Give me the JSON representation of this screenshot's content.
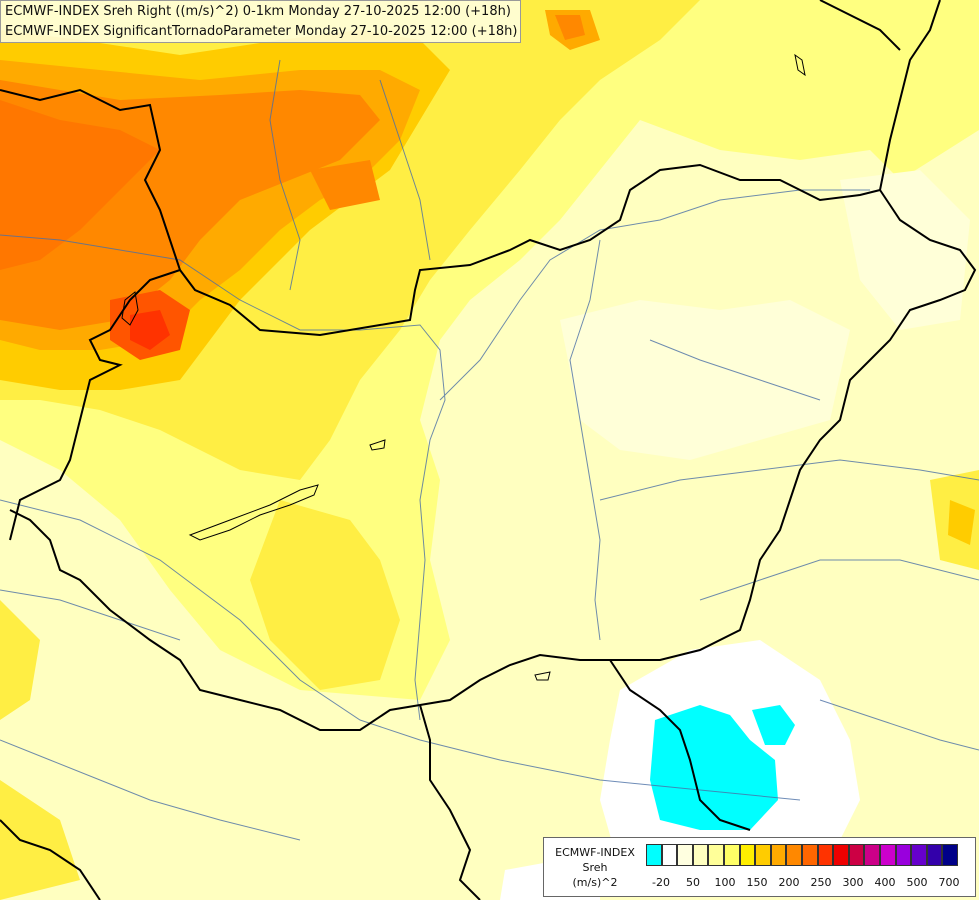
{
  "header": {
    "title_line1": "ECMWF-INDEX Sreh Right ((m/s)^2) 0-1km Monday 27-10-2025 12:00 (+18h)",
    "title_line2": "ECMWF-INDEX SignificantTornadoParameter Monday 27-10-2025 12:00 (+18h)"
  },
  "legend": {
    "title_line1": "ECMWF-INDEX",
    "title_line2": "Sreh",
    "title_line3": "(m/s)^2",
    "colors": [
      "#00ffff",
      "#ffffff",
      "#ffffe0",
      "#ffffc0",
      "#ffff99",
      "#ffff66",
      "#ffee00",
      "#ffcc00",
      "#ffaa00",
      "#ff8800",
      "#ff6600",
      "#ff3300",
      "#ee0000",
      "#cc0044",
      "#cc0088",
      "#cc00cc",
      "#9900dd",
      "#6600cc",
      "#3300aa",
      "#000088"
    ],
    "ticks": [
      "-20",
      "50",
      "100",
      "150",
      "200",
      "250",
      "300",
      "400",
      "500",
      "700"
    ]
  }
}
